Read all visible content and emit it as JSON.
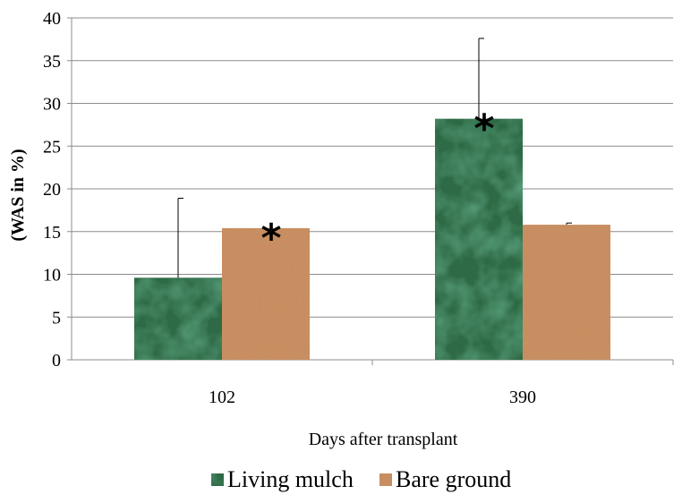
{
  "chart_data": {
    "type": "bar",
    "title": "",
    "xlabel": "Days after transplant",
    "ylabel": "(WAS in %)",
    "categories": [
      "102",
      "390"
    ],
    "ylim": [
      0,
      40
    ],
    "yticks": [
      0,
      5,
      10,
      15,
      20,
      25,
      30,
      35,
      40
    ],
    "grid": true,
    "legend_position": "bottom",
    "series": [
      {
        "name": "Living mulch",
        "values": [
          9.6,
          28.2
        ],
        "error_upper": [
          18.9,
          37.6
        ],
        "color": "#2f6b45"
      },
      {
        "name": "Bare ground",
        "values": [
          15.4,
          15.8
        ],
        "error_upper": [
          null,
          16.0
        ],
        "color": "#c98a5c"
      }
    ],
    "annotations": [
      {
        "text": "*",
        "series": 1,
        "category": 0
      },
      {
        "text": "*",
        "series": 0,
        "category": 1
      }
    ]
  }
}
